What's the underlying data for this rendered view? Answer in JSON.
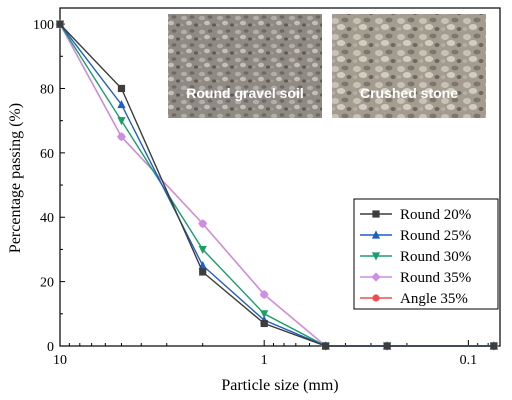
{
  "chart_data": {
    "type": "line",
    "xlabel": "Particle size (mm)",
    "ylabel": "Percentage passing (%)",
    "x_scale": "log",
    "x_reversed": true,
    "xlim": [
      10,
      0.07
    ],
    "ylim": [
      0,
      105
    ],
    "x_ticks": [
      10,
      1,
      0.1
    ],
    "x_tick_labels": [
      "10",
      "1",
      "0.1"
    ],
    "y_ticks": [
      0,
      20,
      40,
      60,
      80,
      100
    ],
    "y_tick_labels": [
      "0",
      "20",
      "40",
      "60",
      "80",
      "100"
    ],
    "legend_position": "right",
    "series": [
      {
        "name": "Round 20%",
        "color": "#3d3d3d",
        "marker": "square",
        "x": [
          10,
          5,
          2,
          1,
          0.5,
          0.25,
          0.075
        ],
        "y": [
          100,
          80,
          23,
          7,
          0,
          0,
          0
        ]
      },
      {
        "name": "Round 25%",
        "color": "#1f5fc7",
        "marker": "triangle-up",
        "x": [
          10,
          5,
          2,
          1,
          0.5,
          0.25,
          0.075
        ],
        "y": [
          100,
          75,
          25,
          8,
          0,
          0,
          0
        ]
      },
      {
        "name": "Round 30%",
        "color": "#1a9e6a",
        "marker": "triangle-down",
        "x": [
          10,
          5,
          2,
          1,
          0.5,
          0.25,
          0.075
        ],
        "y": [
          100,
          70,
          30,
          10,
          0,
          0,
          0
        ]
      },
      {
        "name": "Round 35%",
        "color": "#cc8ee6",
        "marker": "diamond",
        "x": [
          10,
          5,
          2,
          1,
          0.5,
          0.25,
          0.075
        ],
        "y": [
          100,
          65,
          38,
          16,
          0,
          0,
          0
        ]
      },
      {
        "name": "Angle 35%",
        "color": "#f04e4e",
        "marker": "circle",
        "x": [
          10,
          5,
          2,
          1,
          0.5,
          0.25,
          0.075
        ],
        "y": [
          100,
          65,
          38,
          16,
          0,
          0,
          0
        ]
      }
    ]
  },
  "photos": [
    {
      "caption": "Round gravel soil"
    },
    {
      "caption": "Crushed stone"
    }
  ]
}
